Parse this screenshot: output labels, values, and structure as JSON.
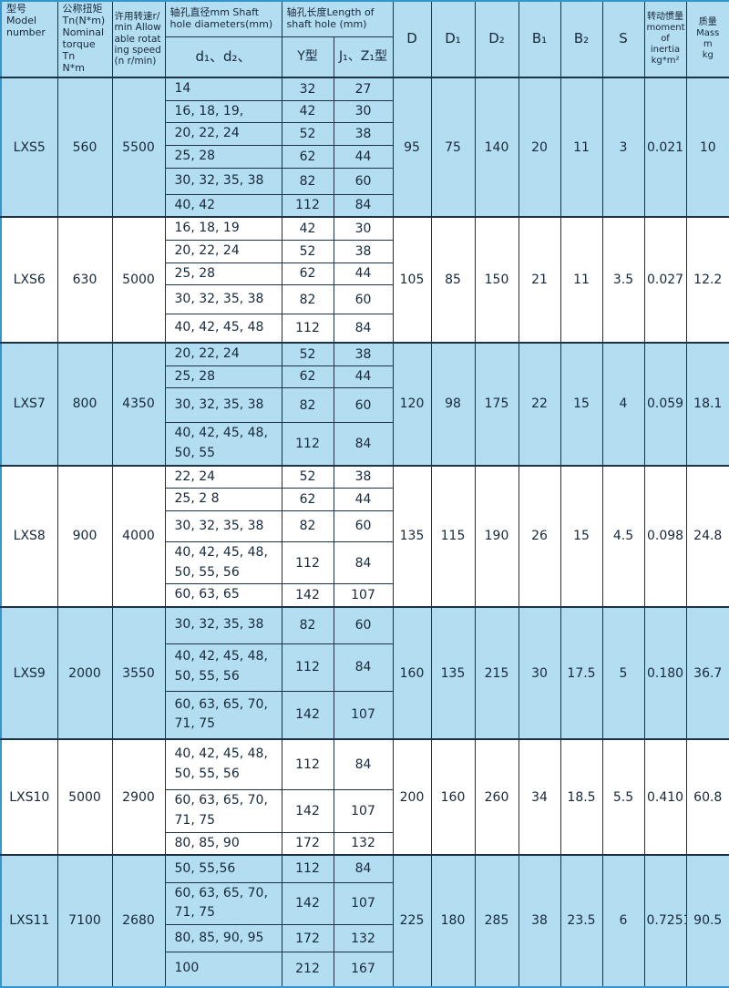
{
  "table": {
    "header": {
      "model": "型号\nModel\nnumber",
      "torque": "公称扭矩\nTn(N*m)\nNominal\ntorque Tn\nN*m",
      "speed": "许用转速r/min Allowable rotating speed (n r/min)",
      "diameter_group": "轴孔直径mm Shaft\nhole diameters(mm)",
      "diameter_sub": "d₁、d₂、",
      "length_group": "轴孔长度Length of\nshaft hole (mm)",
      "length_sub_y": "Y型",
      "length_sub_jz": "J₁、Z₁型",
      "D": "D",
      "D1": "D₁",
      "D2": "D₂",
      "B1": "B₁",
      "B2": "B₂",
      "S": "S",
      "inertia": "转动惯量\nmoment\nof\ninertia\nkg*m²",
      "mass": "质量\nMass\nm\nkg"
    },
    "models": [
      {
        "model": "LXS5",
        "torque": "560",
        "speed": "5500",
        "D": "95",
        "D1": "75",
        "D2": "140",
        "B1": "20",
        "B2": "11",
        "S": "3",
        "inertia": "0.021",
        "mass": "10",
        "rows": [
          {
            "d": "14",
            "y": "32",
            "jz": "27"
          },
          {
            "d": "16, 18, 19,",
            "y": "42",
            "jz": "30"
          },
          {
            "d": "20, 22, 24",
            "y": "52",
            "jz": "38"
          },
          {
            "d": "25, 28",
            "y": "62",
            "jz": "44"
          },
          {
            "d": "30, 32, 35, 38",
            "y": "82",
            "jz": "60"
          },
          {
            "d": "40, 42",
            "y": "112",
            "jz": "84"
          }
        ]
      },
      {
        "model": "LXS6",
        "torque": "630",
        "speed": "5000",
        "D": "105",
        "D1": "85",
        "D2": "150",
        "B1": "21",
        "B2": "11",
        "S": "3.5",
        "inertia": "0.027",
        "mass": "12.2",
        "rows": [
          {
            "d": "16, 18, 19",
            "y": "42",
            "jz": "30"
          },
          {
            "d": "20, 22, 24",
            "y": "52",
            "jz": "38"
          },
          {
            "d": "25, 28",
            "y": "62",
            "jz": "44"
          },
          {
            "d": "30, 32, 35, 38",
            "y": "82",
            "jz": "60"
          },
          {
            "d": "40, 42, 45, 48",
            "y": "112",
            "jz": "84"
          }
        ]
      },
      {
        "model": "LXS7",
        "torque": "800",
        "speed": "4350",
        "D": "120",
        "D1": "98",
        "D2": "175",
        "B1": "22",
        "B2": "15",
        "S": "4",
        "inertia": "0.059",
        "mass": "18.1",
        "rows": [
          {
            "d": "20, 22, 24",
            "y": "52",
            "jz": "38"
          },
          {
            "d": "25, 28",
            "y": "62",
            "jz": "44"
          },
          {
            "d": "30, 32, 35, 38",
            "y": "82",
            "jz": "60"
          },
          {
            "d": "40, 42, 45, 48, 50, 55",
            "y": "112",
            "jz": "84"
          }
        ]
      },
      {
        "model": "LXS8",
        "torque": "900",
        "speed": "4000",
        "D": "135",
        "D1": "115",
        "D2": "190",
        "B1": "26",
        "B2": "15",
        "S": "4.5",
        "inertia": "0.098",
        "mass": "24.8",
        "rows": [
          {
            "d": "22, 24",
            "y": "52",
            "jz": "38"
          },
          {
            "d": "25, 2 8",
            "y": "62",
            "jz": "44"
          },
          {
            "d": "30, 32, 35, 38",
            "y": "82",
            "jz": "60"
          },
          {
            "d": "40, 42, 45, 48, 50, 55, 56",
            "y": "112",
            "jz": "84"
          },
          {
            "d": "60, 63, 65",
            "y": "142",
            "jz": "107"
          }
        ]
      },
      {
        "model": "LXS9",
        "torque": "2000",
        "speed": "3550",
        "D": "160",
        "D1": "135",
        "D2": "215",
        "B1": "30",
        "B2": "17.5",
        "S": "5",
        "inertia": "0.180",
        "mass": "36.7",
        "rows": [
          {
            "d": "30, 32, 35, 38",
            "y": "82",
            "jz": "60"
          },
          {
            "d": "40, 42, 45, 48, 50, 55, 56",
            "y": "112",
            "jz": "84"
          },
          {
            "d": "60, 63, 65, 70, 71, 75",
            "y": "142",
            "jz": "107"
          }
        ]
      },
      {
        "model": "LXS10",
        "torque": "5000",
        "speed": "2900",
        "D": "200",
        "D1": "160",
        "D2": "260",
        "B1": "34",
        "B2": "18.5",
        "S": "5.5",
        "inertia": "0.410",
        "mass": "60.8",
        "rows": [
          {
            "d": "40, 42, 45, 48, 50, 55, 56",
            "y": "112",
            "jz": "84"
          },
          {
            "d": "60, 63, 65, 70, 71, 75",
            "y": "142",
            "jz": "107"
          },
          {
            "d": "80, 85, 90",
            "y": "172",
            "jz": "132"
          }
        ]
      },
      {
        "model": "LXS11",
        "torque": "7100",
        "speed": "2680",
        "D": "225",
        "D1": "180",
        "D2": "285",
        "B1": "38",
        "B2": "23.5",
        "S": "6",
        "inertia": "0.7251",
        "mass": "90.5",
        "rows": [
          {
            "d": "50, 55,56",
            "y": "112",
            "jz": "84"
          },
          {
            "d": "60, 63, 65, 70, 71, 75",
            "y": "142",
            "jz": "107"
          },
          {
            "d": "80, 85, 90, 95",
            "y": "172",
            "jz": "132"
          },
          {
            "d": "100",
            "y": "212",
            "jz": "167"
          }
        ]
      }
    ]
  },
  "colors": {
    "row_blue": "#b3ddf1",
    "row_white": "#ffffff",
    "grid": "#1d3147",
    "frame": "#3496cf",
    "text": "#17283a"
  }
}
